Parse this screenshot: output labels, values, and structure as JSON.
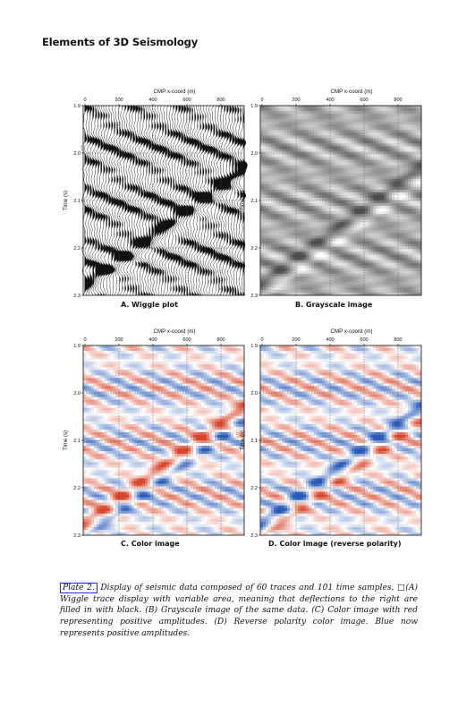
{
  "header": {
    "running_title": "Elements of 3D Seismology"
  },
  "panels": [
    {
      "id": "A",
      "style": "wiggle",
      "xlabel": "CMP x-coord (m)",
      "ylabel": "Time (s)",
      "xticks": [
        "0",
        "200",
        "400",
        "600",
        "800"
      ],
      "yticks": [
        "1.9",
        "2.0",
        "2.1",
        "2.2",
        "2.3"
      ],
      "caption": "A. Wiggle plot"
    },
    {
      "id": "B",
      "style": "grayscale",
      "xlabel": "CMP x-coord (m)",
      "ylabel": "Time (s)",
      "xticks": [
        "0",
        "200",
        "400",
        "600",
        "800"
      ],
      "yticks": [
        "1.9",
        "2.0",
        "2.1",
        "2.2",
        "2.3"
      ],
      "caption": "B. Grayscale image"
    },
    {
      "id": "C",
      "style": "color",
      "xlabel": "CMP x-coord (m)",
      "ylabel": "Time (s)",
      "xticks": [
        "0",
        "200",
        "400",
        "600",
        "800"
      ],
      "yticks": [
        "1.9",
        "2.0",
        "2.1",
        "2.2",
        "2.3"
      ],
      "caption": "C. Color image"
    },
    {
      "id": "D",
      "style": "color-reverse",
      "xlabel": "CMP x-coord (m)",
      "ylabel": "Time (s)",
      "xticks": [
        "0",
        "200",
        "400",
        "600",
        "800"
      ],
      "yticks": [
        "1.9",
        "2.0",
        "2.1",
        "2.2",
        "2.3"
      ],
      "caption": "D. Color image (reverse polarity)"
    }
  ],
  "caption": {
    "plate_label": "Plate 2.",
    "text": " Display of seismic data composed of 60 traces and 101 time samples. □(A) Wiggle trace display with variable area, meaning that deflections to the right are filled in with black. (B) Grayscale image of the same data. (C) Color image with red representing positive amplitudes. (D) Reverse polarity color image. Blue now represents positive amplitudes."
  },
  "colors": {
    "positive_red": "#d8452b",
    "negative_blue": "#2a5ab8",
    "text": "#111111"
  }
}
